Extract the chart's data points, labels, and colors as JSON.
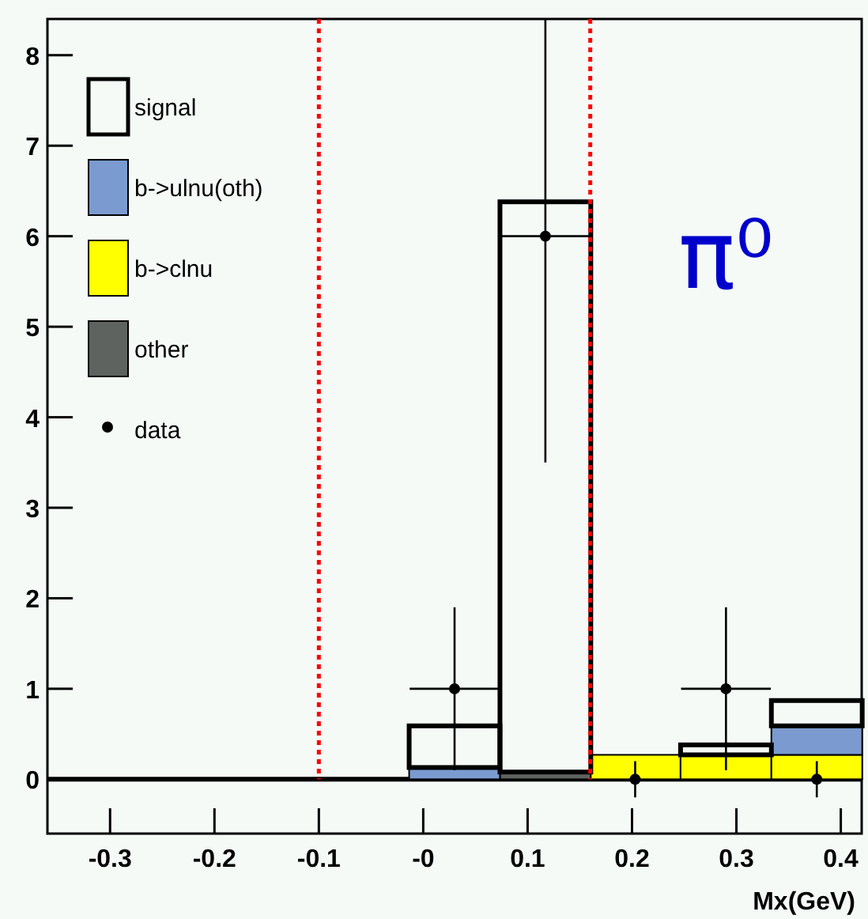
{
  "chart_data": {
    "type": "bar",
    "xlabel": "Mx(GeV)",
    "x": [
      -0.317,
      -0.23,
      -0.143,
      -0.057,
      0.03,
      0.117,
      0.203,
      0.29,
      0.377
    ],
    "stacked": true,
    "series": [
      {
        "name": "other",
        "color": "#5f6360",
        "values": [
          0,
          0,
          0,
          0,
          0,
          0.08,
          0,
          0,
          0
        ]
      },
      {
        "name": "b->clnu",
        "color": "#ffff00",
        "values": [
          0,
          0,
          0,
          0,
          0,
          0,
          0.27,
          0.27,
          0.27
        ]
      },
      {
        "name": "b->ulnu(oth)",
        "color": "#7b9bd0",
        "values": [
          0,
          0,
          0,
          0,
          0.13,
          0,
          0,
          0,
          0.32
        ]
      },
      {
        "name": "signal",
        "color": "#000000",
        "values": [
          0,
          0,
          0,
          0,
          0.46,
          6.3,
          0,
          0.11,
          0.28
        ]
      },
      {
        "name": "data",
        "type": "scatter",
        "marker": "circle",
        "color": "#000000",
        "x": [
          0.03,
          0.117,
          0.203,
          0.29,
          0.377
        ],
        "values": [
          1,
          6,
          0,
          1,
          0
        ],
        "errors": [
          [
            0.1,
            1.9
          ],
          [
            3.5,
            8.4
          ],
          [
            -0.2,
            0.2
          ],
          [
            0.1,
            1.9
          ],
          [
            -0.2,
            0.2
          ]
        ],
        "xerrors": [
          0.043,
          0.043,
          null,
          0.043,
          null
        ]
      }
    ],
    "xlim": [
      -0.36,
      0.42
    ],
    "ylim": [
      -0.6,
      8.4
    ],
    "xticks": [
      -0.3,
      -0.2,
      -0.1,
      {
        "value": 0,
        "label": "-0"
      },
      0.1,
      0.2,
      0.3,
      0.4
    ],
    "yticks": [
      0,
      1,
      2,
      3,
      4,
      5,
      6,
      7,
      8
    ],
    "ref_lines": [
      {
        "axis": "x",
        "value": -0.1,
        "color": "#ff0000",
        "line_style": "dotted"
      },
      {
        "axis": "x",
        "value": 0.16,
        "color": "#ff0000",
        "line_style": "dotted"
      }
    ],
    "annotations": [
      "π⁰"
    ],
    "legend": "top left",
    "grid": false
  }
}
